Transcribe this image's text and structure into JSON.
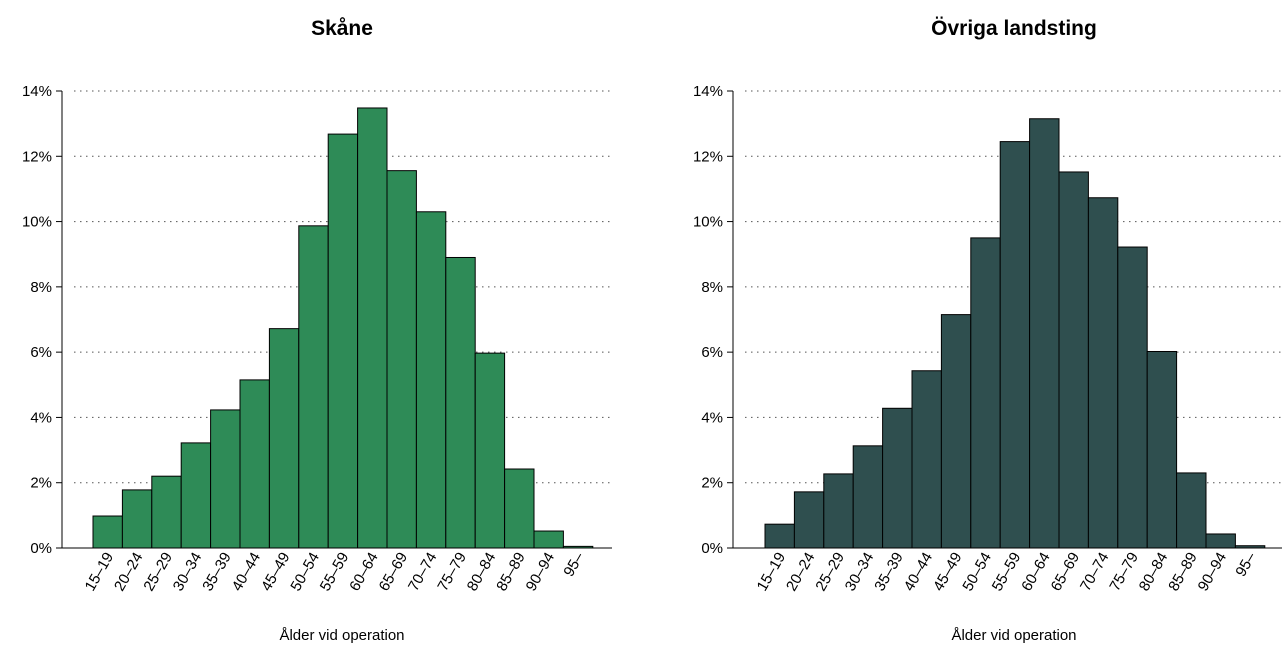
{
  "chart_data": [
    {
      "type": "bar",
      "title": "Skåne",
      "xlabel": "Ålder vid operation",
      "ylabel": "",
      "ylim": [
        0,
        14
      ],
      "yticks": [
        0,
        2,
        4,
        6,
        8,
        10,
        12,
        14
      ],
      "ytick_labels": [
        "0%",
        "2%",
        "4%",
        "6%",
        "8%",
        "10%",
        "12%",
        "14%"
      ],
      "categories": [
        "15–19",
        "20–24",
        "25–29",
        "30–34",
        "35–39",
        "40–44",
        "45–49",
        "50–54",
        "55–59",
        "60–64",
        "65–69",
        "70–74",
        "75–79",
        "80–84",
        "85–89",
        "90–94",
        "95–"
      ],
      "values": [
        0.98,
        1.78,
        2.2,
        3.22,
        4.23,
        5.15,
        6.72,
        9.87,
        12.68,
        13.48,
        11.56,
        10.3,
        8.9,
        5.97,
        2.42,
        0.52,
        0.05
      ],
      "grid": true,
      "color": "#2e8b57"
    },
    {
      "type": "bar",
      "title": "Övriga landsting",
      "xlabel": "Ålder vid operation",
      "ylabel": "",
      "ylim": [
        0,
        14
      ],
      "yticks": [
        0,
        2,
        4,
        6,
        8,
        10,
        12,
        14
      ],
      "ytick_labels": [
        "0%",
        "2%",
        "4%",
        "6%",
        "8%",
        "10%",
        "12%",
        "14%"
      ],
      "categories": [
        "15–19",
        "20–24",
        "25–29",
        "30–34",
        "35–39",
        "40–44",
        "45–49",
        "50–54",
        "55–59",
        "60–64",
        "65–69",
        "70–74",
        "75–79",
        "80–84",
        "85–89",
        "90–94",
        "95–"
      ],
      "values": [
        0.73,
        1.72,
        2.27,
        3.13,
        4.28,
        5.43,
        7.15,
        9.5,
        12.45,
        13.15,
        11.52,
        10.73,
        9.22,
        6.02,
        2.3,
        0.43,
        0.07
      ],
      "grid": true,
      "color": "#2f4f4f"
    }
  ]
}
